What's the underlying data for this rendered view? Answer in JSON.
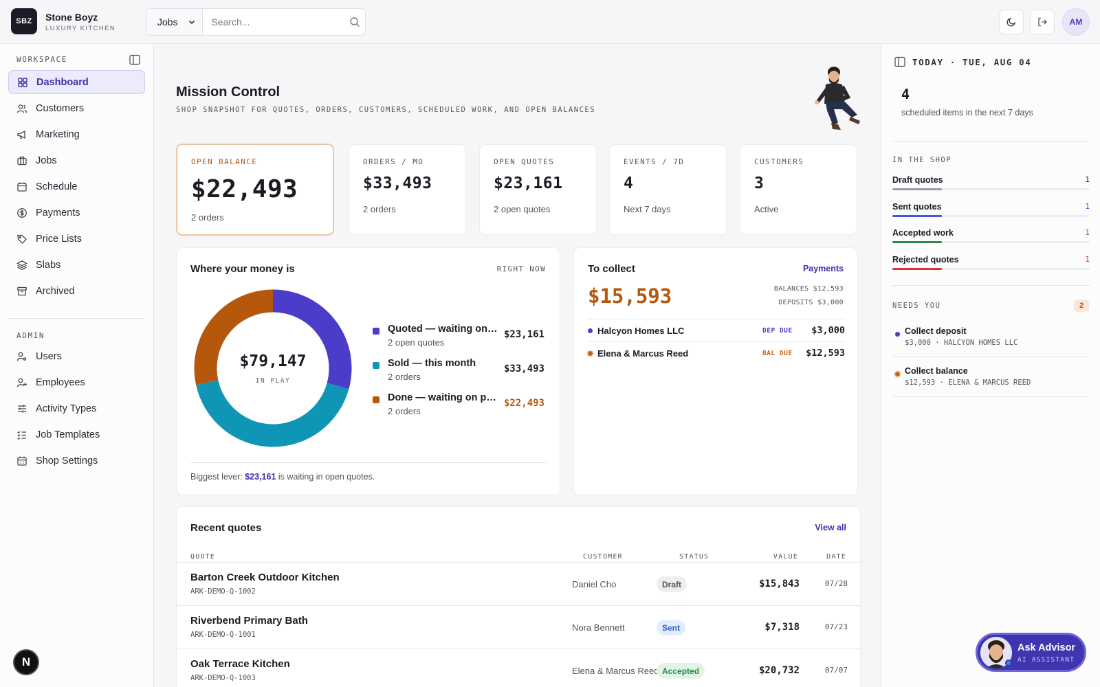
{
  "brand": {
    "logo_text": "SBZ",
    "name": "Stone Boyz",
    "subtitle": "LUXURY KITCHEN"
  },
  "search": {
    "scope": "Jobs",
    "placeholder": "Search..."
  },
  "user": {
    "initials": "AM"
  },
  "sidebar": {
    "workspace_label": "WORKSPACE",
    "workspace_items": [
      {
        "label": "Dashboard",
        "icon": "grid-icon",
        "active": true
      },
      {
        "label": "Customers",
        "icon": "users-icon"
      },
      {
        "label": "Marketing",
        "icon": "megaphone-icon"
      },
      {
        "label": "Jobs",
        "icon": "briefcase-icon"
      },
      {
        "label": "Schedule",
        "icon": "calendar-icon"
      },
      {
        "label": "Payments",
        "icon": "dollar-circle-icon"
      },
      {
        "label": "Price Lists",
        "icon": "tag-icon"
      },
      {
        "label": "Slabs",
        "icon": "layers-icon"
      },
      {
        "label": "Archived",
        "icon": "archive-icon"
      }
    ],
    "admin_label": "ADMIN",
    "admin_items": [
      {
        "label": "Users",
        "icon": "user-key-icon"
      },
      {
        "label": "Employees",
        "icon": "user-plus-icon"
      },
      {
        "label": "Activity Types",
        "icon": "sliders-icon"
      },
      {
        "label": "Job Templates",
        "icon": "checklist-icon"
      },
      {
        "label": "Shop Settings",
        "icon": "calendar-grid-icon"
      }
    ],
    "dev_badge": "N"
  },
  "page": {
    "title": "Mission Control",
    "subtitle": "SHOP SNAPSHOT FOR QUOTES, ORDERS, CUSTOMERS, SCHEDULED WORK, AND OPEN BALANCES"
  },
  "stats": [
    {
      "label": "OPEN BALANCE",
      "value": "$22,493",
      "sub": "2 orders"
    },
    {
      "label": "ORDERS / MO",
      "value": "$33,493",
      "sub": "2 orders"
    },
    {
      "label": "OPEN QUOTES",
      "value": "$23,161",
      "sub": "2 open quotes"
    },
    {
      "label": "EVENTS / 7D",
      "value": "4",
      "sub": "Next 7 days"
    },
    {
      "label": "CUSTOMERS",
      "value": "3",
      "sub": "Active"
    }
  ],
  "money": {
    "title": "Where your money is",
    "tag": "RIGHT NOW",
    "total": "$79,147",
    "total_label": "IN PLAY",
    "segments": [
      {
        "label": "Quoted — waiting on customer",
        "sub": "2 open quotes",
        "amount": "$23,161",
        "value": 23161,
        "color": "#4b3dc9"
      },
      {
        "label": "Sold — this month",
        "sub": "2 orders",
        "amount": "$33,493",
        "value": 33493,
        "color": "#0f96b6"
      },
      {
        "label": "Done — waiting on payment",
        "sub": "2 orders",
        "amount": "$22,493",
        "value": 22493,
        "color": "#b5580c"
      }
    ],
    "lever_prefix": "Biggest lever:",
    "lever_amount": "$23,161",
    "lever_suffix": "is waiting in open quotes."
  },
  "collect": {
    "title": "To collect",
    "link": "Payments",
    "amount": "$15,593",
    "balances": "BALANCES $12,593",
    "deposits": "DEPOSITS $3,000",
    "rows": [
      {
        "name": "Halcyon Homes LLC",
        "tag": "DEP DUE",
        "amount": "$3,000",
        "color": "#4b3dc9"
      },
      {
        "name": "Elena & Marcus Reed",
        "tag": "BAL DUE",
        "amount": "$12,593",
        "color": "#c5651c"
      }
    ]
  },
  "quotes": {
    "title": "Recent quotes",
    "link": "View all",
    "headers": {
      "quote": "QUOTE",
      "customer": "CUSTOMER",
      "status": "STATUS",
      "value": "VALUE",
      "date": "DATE"
    },
    "rows": [
      {
        "title": "Barton Creek Outdoor Kitchen",
        "code": "ARK-DEMO-Q-1002",
        "customer": "Daniel Cho",
        "status": "Draft",
        "value": "$15,843",
        "date": "07/28"
      },
      {
        "title": "Riverbend Primary Bath",
        "code": "ARK-DEMO-Q-1001",
        "customer": "Nora Bennett",
        "status": "Sent",
        "value": "$7,318",
        "date": "07/23"
      },
      {
        "title": "Oak Terrace Kitchen",
        "code": "ARK-DEMO-Q-1003",
        "customer": "Elena & Marcus Reed",
        "status": "Accepted",
        "value": "$20,732",
        "date": "07/07"
      }
    ]
  },
  "right": {
    "today": "TODAY · TUE, AUG 04",
    "scheduled_count": "4",
    "scheduled_label": "scheduled items in the next 7 days",
    "shop_label": "IN THE SHOP",
    "shop": [
      {
        "label": "Draft quotes",
        "count": "1",
        "fraction": 0.25,
        "color": "#9a9aa8"
      },
      {
        "label": "Sent quotes",
        "count": "1",
        "fraction": 0.25,
        "color": "#3b5bdb"
      },
      {
        "label": "Accepted work",
        "count": "1",
        "fraction": 0.25,
        "color": "#2b8a3e"
      },
      {
        "label": "Rejected quotes",
        "count": "1",
        "fraction": 0.25,
        "color": "#e03131"
      }
    ],
    "needs_label": "NEEDS YOU",
    "needs_count": "2",
    "needs": [
      {
        "title": "Collect deposit",
        "sub": "$3,000 · HALCYON HOMES LLC",
        "color": "#4b3dc9"
      },
      {
        "title": "Collect balance",
        "sub": "$12,593 · ELENA & MARCUS REED",
        "color": "#c5651c"
      }
    ]
  },
  "advisor": {
    "name": "Ask Advisor",
    "sub": "AI ASSISTANT"
  }
}
